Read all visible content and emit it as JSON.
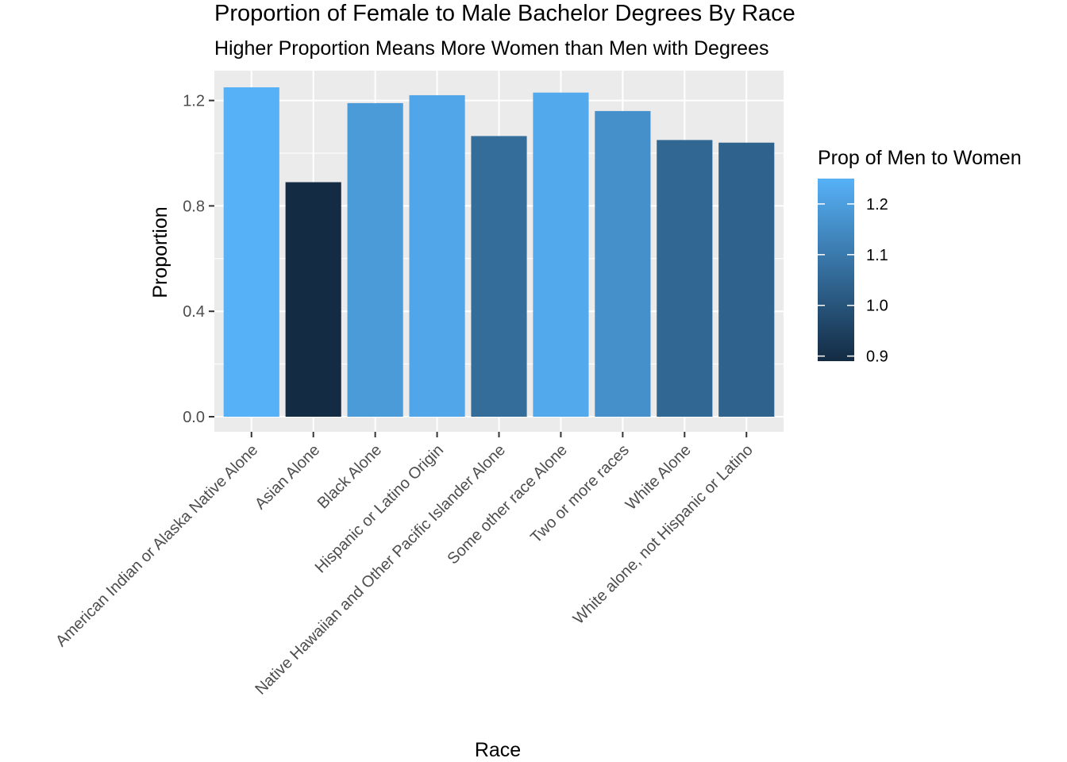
{
  "chart_data": {
    "type": "bar",
    "title": "Proportion of Female to Male Bachelor Degrees By Race",
    "subtitle": "Higher Proportion Means More Women than Men with Degrees",
    "xlabel": "Race",
    "ylabel": "Proportion",
    "categories": [
      "American Indian or Alaska Native Alone",
      "Asian Alone",
      "Black Alone",
      "Hispanic or Latino Origin",
      "Native Hawaiian and Other Pacific Islander Alone",
      "Some other race Alone",
      "Two or more races",
      "White Alone",
      "White alone, not Hispanic or Latino"
    ],
    "values": [
      1.25,
      0.89,
      1.19,
      1.22,
      1.065,
      1.23,
      1.16,
      1.05,
      1.04
    ],
    "ylim": [
      0,
      1.25
    ],
    "yticks": [
      "0.0",
      "0.4",
      "0.8",
      "1.2"
    ],
    "grid": true,
    "legend": {
      "title": "Prop of Men to Women",
      "position": "right",
      "type": "colorbar",
      "ticks": [
        "0.9",
        "1.0",
        "1.1",
        "1.2"
      ],
      "range": [
        0.89,
        1.25
      ],
      "color_low": "#132B43",
      "color_high": "#56B1F7"
    },
    "panel_background": "#EBEBEB",
    "grid_color": "#FFFFFF"
  }
}
